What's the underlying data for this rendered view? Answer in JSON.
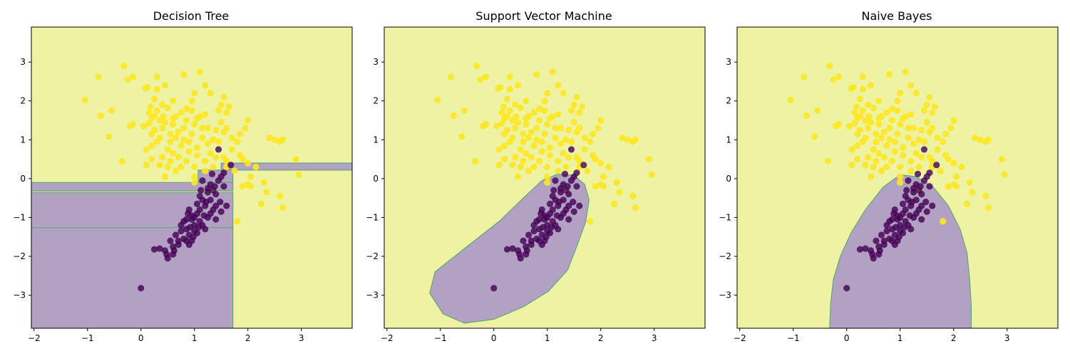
{
  "colors": {
    "region_yellow": "#edf3a3",
    "region_purple": "#b2a1c3",
    "boundary": "#5fa879",
    "class0_point": "#440154",
    "class1_point": "#fde725",
    "axes": "#000000",
    "background": "#ffffff"
  },
  "chart_data": [
    {
      "type": "scatter",
      "title": "Decision Tree",
      "xlim": [
        -2.05,
        3.95
      ],
      "ylim": [
        -3.85,
        3.9
      ],
      "x_ticks": [
        -2,
        -1,
        0,
        1,
        2,
        3
      ],
      "y_ticks": [
        -3,
        -2,
        -1,
        0,
        1,
        2,
        3
      ],
      "background_class": 1,
      "decision_regions": [
        {
          "class": 0,
          "kind": "rect",
          "x": [
            -2.05,
            1.72
          ],
          "y": [
            -3.85,
            -1.22
          ]
        },
        {
          "class": 0,
          "kind": "rect",
          "x": [
            -2.05,
            1.72
          ],
          "y": [
            -1.26,
            -0.36
          ]
        },
        {
          "class": 0,
          "kind": "rect",
          "x": [
            -2.05,
            1.72
          ],
          "y": [
            -0.32,
            -0.1
          ]
        },
        {
          "class": 0,
          "kind": "rect",
          "x": [
            1.07,
            1.72
          ],
          "y": [
            -0.1,
            0.22
          ]
        },
        {
          "class": 0,
          "kind": "rect",
          "x": [
            1.5,
            3.95
          ],
          "y": [
            0.22,
            0.4
          ]
        }
      ]
    },
    {
      "type": "scatter",
      "title": "Support Vector Machine",
      "xlim": [
        -2.05,
        3.95
      ],
      "ylim": [
        -3.85,
        3.9
      ],
      "x_ticks": [
        -2,
        -1,
        0,
        1,
        2,
        3
      ],
      "y_ticks": [
        -3,
        -2,
        -1,
        0,
        1,
        2,
        3
      ],
      "background_class": 1,
      "decision_regions": [
        {
          "class": 0,
          "kind": "polygon",
          "points": [
            [
              1.2,
              0.12
            ],
            [
              1.5,
              0.08
            ],
            [
              1.7,
              -0.15
            ],
            [
              1.78,
              -0.55
            ],
            [
              1.72,
              -1.1
            ],
            [
              1.55,
              -1.75
            ],
            [
              1.38,
              -2.35
            ],
            [
              1.02,
              -2.9
            ],
            [
              0.55,
              -3.3
            ],
            [
              0.0,
              -3.62
            ],
            [
              -0.55,
              -3.72
            ],
            [
              -0.95,
              -3.48
            ],
            [
              -1.2,
              -2.95
            ],
            [
              -1.1,
              -2.4
            ],
            [
              -0.55,
              -1.8
            ],
            [
              0.1,
              -1.1
            ],
            [
              0.55,
              -0.5
            ],
            [
              0.9,
              -0.05
            ]
          ]
        }
      ]
    },
    {
      "type": "scatter",
      "title": "Naive Bayes",
      "xlim": [
        -2.05,
        3.95
      ],
      "ylim": [
        -3.85,
        3.9
      ],
      "x_ticks": [
        -2,
        -1,
        0,
        1,
        2,
        3
      ],
      "y_ticks": [
        -3,
        -2,
        -1,
        0,
        1,
        2,
        3
      ],
      "background_class": 1,
      "decision_regions": [
        {
          "class": 0,
          "kind": "polygon",
          "points": [
            [
              -0.32,
              -3.85
            ],
            [
              -0.3,
              -3.2
            ],
            [
              -0.25,
              -2.6
            ],
            [
              -0.12,
              -2.0
            ],
            [
              0.08,
              -1.4
            ],
            [
              0.35,
              -0.8
            ],
            [
              0.68,
              -0.22
            ],
            [
              1.0,
              0.1
            ],
            [
              1.3,
              0.05
            ],
            [
              1.62,
              -0.22
            ],
            [
              1.9,
              -0.7
            ],
            [
              2.12,
              -1.3
            ],
            [
              2.25,
              -1.9
            ],
            [
              2.3,
              -2.6
            ],
            [
              2.33,
              -3.3
            ],
            [
              2.33,
              -3.85
            ]
          ]
        }
      ]
    }
  ],
  "points": {
    "class0": [
      [
        1.45,
        0.75
      ],
      [
        1.68,
        0.35
      ],
      [
        1.33,
        0.12
      ],
      [
        1.55,
        0.15
      ],
      [
        1.5,
        0.05
      ],
      [
        1.45,
        -0.05
      ],
      [
        1.3,
        -0.15
      ],
      [
        1.15,
        -0.05
      ],
      [
        1.25,
        -0.35
      ],
      [
        1.4,
        -0.4
      ],
      [
        1.55,
        -0.2
      ],
      [
        1.48,
        -0.6
      ],
      [
        1.3,
        -0.55
      ],
      [
        1.1,
        -0.45
      ],
      [
        1.2,
        -0.7
      ],
      [
        1.35,
        -0.8
      ],
      [
        1.5,
        -0.85
      ],
      [
        1.6,
        -0.7
      ],
      [
        1.05,
        -0.9
      ],
      [
        0.9,
        -0.8
      ],
      [
        0.95,
        -1.05
      ],
      [
        1.1,
        -1.1
      ],
      [
        1.25,
        -1.0
      ],
      [
        1.4,
        -1.05
      ],
      [
        1.2,
        -1.3
      ],
      [
        1.05,
        -1.4
      ],
      [
        0.85,
        -1.3
      ],
      [
        0.75,
        -1.2
      ],
      [
        0.65,
        -1.45
      ],
      [
        0.8,
        -1.55
      ],
      [
        0.95,
        -1.6
      ],
      [
        1.0,
        -1.35
      ],
      [
        0.7,
        -1.7
      ],
      [
        0.55,
        -1.6
      ],
      [
        0.45,
        -1.85
      ],
      [
        0.6,
        -1.95
      ],
      [
        0.5,
        -2.05
      ],
      [
        0.35,
        -1.8
      ],
      [
        0.9,
        -1.7
      ],
      [
        1.15,
        -1.2
      ],
      [
        1.0,
        -1.0
      ],
      [
        0.85,
        -1.05
      ],
      [
        1.3,
        -0.9
      ],
      [
        1.15,
        -0.55
      ],
      [
        1.05,
        -0.65
      ],
      [
        0.95,
        -0.95
      ],
      [
        0.9,
        -1.45
      ],
      [
        1.1,
        -0.8
      ],
      [
        0.75,
        -1.35
      ],
      [
        1.25,
        -0.25
      ],
      [
        0.8,
        -1.1
      ],
      [
        0.7,
        -1.6
      ],
      [
        1.35,
        -0.3
      ],
      [
        0.85,
        -1.6
      ],
      [
        0.0,
        -2.82
      ],
      [
        1.0,
        -1.2
      ],
      [
        0.92,
        -1.25
      ],
      [
        1.18,
        -0.95
      ],
      [
        1.08,
        -1.25
      ],
      [
        0.98,
        -1.5
      ],
      [
        0.6,
        -1.75
      ],
      [
        0.48,
        -1.95
      ],
      [
        0.62,
        -1.85
      ],
      [
        1.4,
        -0.7
      ],
      [
        1.22,
        -0.6
      ],
      [
        1.38,
        -0.2
      ],
      [
        0.25,
        -1.82
      ],
      [
        0.88,
        -0.9
      ],
      [
        1.12,
        -0.3
      ]
    ],
    "class1": [
      [
        -0.32,
        2.9
      ],
      [
        -0.15,
        2.62
      ],
      [
        -0.8,
        2.62
      ],
      [
        0.3,
        2.62
      ],
      [
        0.8,
        2.68
      ],
      [
        1.1,
        2.75
      ],
      [
        -0.25,
        2.55
      ],
      [
        -1.05,
        2.02
      ],
      [
        -0.55,
        1.75
      ],
      [
        -0.75,
        1.62
      ],
      [
        -0.6,
        1.08
      ],
      [
        -0.2,
        1.35
      ],
      [
        -0.15,
        1.4
      ],
      [
        0.08,
        2.32
      ],
      [
        0.12,
        2.35
      ],
      [
        0.45,
        2.4
      ],
      [
        0.3,
        2.3
      ],
      [
        0.25,
        2.05
      ],
      [
        0.18,
        1.85
      ],
      [
        0.3,
        1.75
      ],
      [
        0.42,
        1.6
      ],
      [
        0.5,
        1.82
      ],
      [
        0.65,
        1.6
      ],
      [
        0.75,
        1.7
      ],
      [
        0.95,
        1.75
      ],
      [
        1.0,
        2.2
      ],
      [
        1.2,
        2.4
      ],
      [
        1.3,
        2.2
      ],
      [
        1.5,
        1.9
      ],
      [
        1.55,
        2.1
      ],
      [
        1.65,
        1.85
      ],
      [
        1.45,
        1.75
      ],
      [
        1.6,
        1.7
      ],
      [
        1.2,
        1.65
      ],
      [
        1.05,
        1.55
      ],
      [
        0.85,
        1.5
      ],
      [
        0.6,
        1.4
      ],
      [
        0.4,
        1.3
      ],
      [
        0.15,
        1.42
      ],
      [
        0.05,
        1.35
      ],
      [
        0.2,
        1.15
      ],
      [
        0.35,
        1.05
      ],
      [
        0.55,
        0.95
      ],
      [
        0.7,
        1.2
      ],
      [
        0.8,
        1.0
      ],
      [
        0.95,
        1.15
      ],
      [
        1.15,
        1.05
      ],
      [
        1.25,
        1.3
      ],
      [
        1.4,
        1.25
      ],
      [
        1.55,
        1.2
      ],
      [
        1.7,
        1.05
      ],
      [
        1.8,
        0.95
      ],
      [
        1.95,
        1.3
      ],
      [
        2.0,
        1.5
      ],
      [
        1.9,
        0.5
      ],
      [
        2.0,
        0.4
      ],
      [
        1.6,
        0.45
      ],
      [
        1.4,
        0.55
      ],
      [
        1.25,
        0.9
      ],
      [
        1.05,
        0.8
      ],
      [
        0.9,
        0.7
      ],
      [
        0.6,
        0.65
      ],
      [
        0.4,
        0.55
      ],
      [
        0.2,
        0.85
      ],
      [
        0.1,
        0.75
      ],
      [
        0.35,
        0.35
      ],
      [
        0.5,
        0.3
      ],
      [
        0.45,
        0.05
      ],
      [
        0.65,
        0.2
      ],
      [
        0.85,
        0.45
      ],
      [
        1.0,
        0.3
      ],
      [
        1.2,
        0.2
      ],
      [
        1.35,
        0.3
      ],
      [
        1.55,
        0.55
      ],
      [
        1.75,
        0.2
      ],
      [
        2.15,
        0.3
      ],
      [
        2.05,
        0.05
      ],
      [
        2.3,
        -0.1
      ],
      [
        2.5,
        1.0
      ],
      [
        2.6,
        0.95
      ],
      [
        2.65,
        1.0
      ],
      [
        2.9,
        0.5
      ],
      [
        2.95,
        0.1
      ],
      [
        2.35,
        -0.35
      ],
      [
        2.6,
        -0.45
      ],
      [
        2.65,
        -0.75
      ],
      [
        2.25,
        -0.65
      ],
      [
        2.0,
        -0.15
      ],
      [
        1.9,
        -0.2
      ],
      [
        1.8,
        -1.1
      ],
      [
        1.0,
        -0.1
      ],
      [
        1.35,
        -0.3
      ],
      [
        -0.35,
        0.45
      ],
      [
        0.5,
        0.75
      ],
      [
        0.75,
        0.85
      ],
      [
        1.1,
        1.6
      ],
      [
        0.25,
        1.6
      ],
      [
        0.4,
        1.9
      ],
      [
        0.6,
        1.55
      ],
      [
        0.15,
        1.7
      ],
      [
        0.9,
        0.95
      ],
      [
        0.7,
        0.55
      ],
      [
        1.3,
        0.65
      ],
      [
        1.6,
        1.3
      ],
      [
        1.85,
        0.6
      ],
      [
        2.05,
        -0.2
      ],
      [
        0.55,
        1.15
      ],
      [
        0.3,
        0.95
      ],
      [
        1.0,
        1.4
      ],
      [
        1.15,
        1.3
      ],
      [
        1.5,
        1.45
      ],
      [
        0.85,
        1.8
      ],
      [
        0.65,
        1.05
      ],
      [
        0.25,
        1.25
      ],
      [
        1.2,
        0.45
      ],
      [
        0.2,
        0.5
      ],
      [
        0.75,
        0.3
      ],
      [
        1.45,
        0.95
      ],
      [
        1.85,
        1.15
      ],
      [
        0.45,
        1.45
      ],
      [
        1.05,
        0.6
      ],
      [
        0.95,
        2.0
      ],
      [
        0.6,
        2.0
      ],
      [
        0.35,
        1.5
      ],
      [
        1.35,
        1.0
      ],
      [
        1.7,
        0.75
      ],
      [
        0.8,
        1.3
      ],
      [
        1.6,
        0.3
      ],
      [
        2.4,
        1.05
      ],
      [
        0.1,
        0.35
      ],
      [
        1.0,
        0.05
      ],
      [
        0.55,
        0.45
      ],
      [
        0.2,
        1.55
      ]
    ]
  }
}
